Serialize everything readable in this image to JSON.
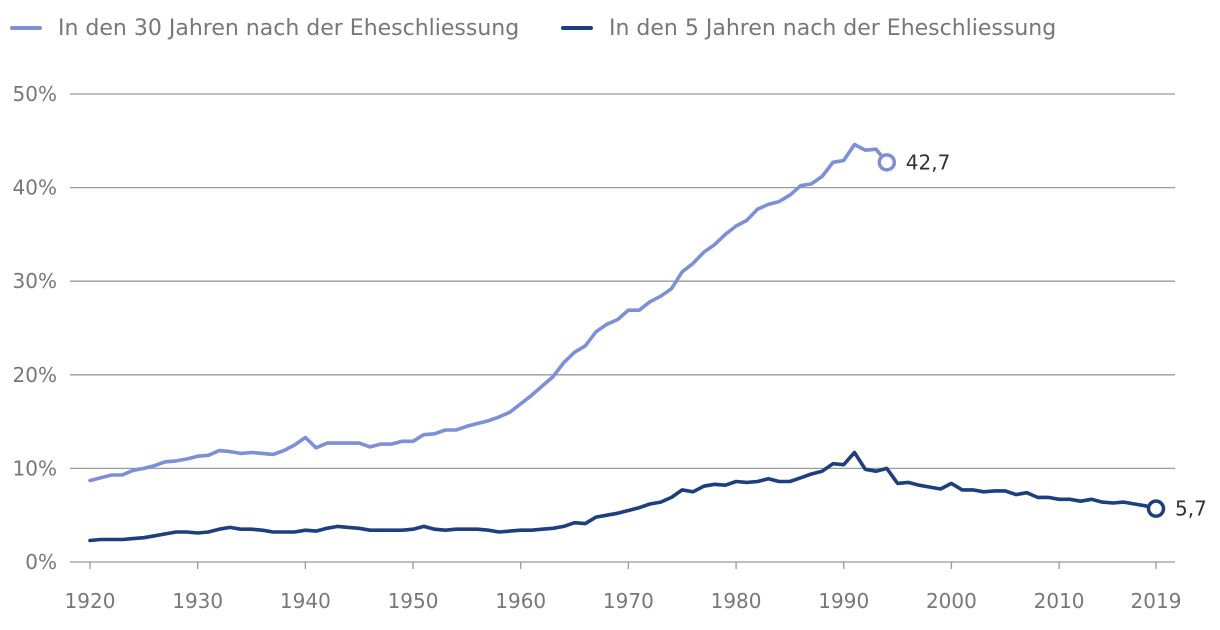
{
  "chart_data": {
    "type": "line",
    "title": "",
    "xlabel": "",
    "ylabel": "",
    "xlim": [
      1920,
      2019
    ],
    "ylim": [
      0,
      50
    ],
    "x_ticks": [
      "1920",
      "1930",
      "1940",
      "1950",
      "1960",
      "1970",
      "1980",
      "1990",
      "2000",
      "2010",
      "2019"
    ],
    "y_ticks": [
      "0%",
      "10%",
      "20%",
      "30%",
      "40%",
      "50%"
    ],
    "grid": true,
    "legend_position": "top-left",
    "series": [
      {
        "name": "In den 30 Jahren nach der Eheschliessung",
        "color": "#7d8fd6",
        "end_label": "42,7",
        "x": [
          1920,
          1921,
          1922,
          1923,
          1924,
          1925,
          1926,
          1927,
          1928,
          1929,
          1930,
          1931,
          1932,
          1933,
          1934,
          1935,
          1936,
          1937,
          1938,
          1939,
          1940,
          1941,
          1942,
          1943,
          1944,
          1945,
          1946,
          1947,
          1948,
          1949,
          1950,
          1951,
          1952,
          1953,
          1954,
          1955,
          1956,
          1957,
          1958,
          1959,
          1960,
          1961,
          1962,
          1963,
          1964,
          1965,
          1966,
          1967,
          1968,
          1969,
          1970,
          1971,
          1972,
          1973,
          1974,
          1975,
          1976,
          1977,
          1978,
          1979,
          1980,
          1981,
          1982,
          1983,
          1984,
          1985,
          1986,
          1987,
          1988,
          1989,
          1990,
          1991,
          1992,
          1993,
          1994
        ],
        "values": [
          8.7,
          9.0,
          9.3,
          9.3,
          9.8,
          10.0,
          10.3,
          10.7,
          10.8,
          11.0,
          11.3,
          11.4,
          11.9,
          11.8,
          11.6,
          11.7,
          11.6,
          11.5,
          11.9,
          12.5,
          13.3,
          12.2,
          12.7,
          12.7,
          12.7,
          12.7,
          12.3,
          12.6,
          12.6,
          12.9,
          12.9,
          13.6,
          13.7,
          14.1,
          14.1,
          14.5,
          14.8,
          15.1,
          15.5,
          16.0,
          16.9,
          17.8,
          18.8,
          19.8,
          21.3,
          22.4,
          23.1,
          24.6,
          25.4,
          25.9,
          26.9,
          26.9,
          27.8,
          28.4,
          29.2,
          31.0,
          31.9,
          33.1,
          33.9,
          35.0,
          35.9,
          36.5,
          37.7,
          38.2,
          38.5,
          39.2,
          40.2,
          40.4,
          41.2,
          42.7,
          42.9,
          44.6,
          44.0,
          44.1,
          42.7
        ]
      },
      {
        "name": "In den 5 Jahren nach der Eheschliessung",
        "color": "#1e3f7f",
        "end_label": "5,7",
        "x": [
          1920,
          1921,
          1922,
          1923,
          1924,
          1925,
          1926,
          1927,
          1928,
          1929,
          1930,
          1931,
          1932,
          1933,
          1934,
          1935,
          1936,
          1937,
          1938,
          1939,
          1940,
          1941,
          1942,
          1943,
          1944,
          1945,
          1946,
          1947,
          1948,
          1949,
          1950,
          1951,
          1952,
          1953,
          1954,
          1955,
          1956,
          1957,
          1958,
          1959,
          1960,
          1961,
          1962,
          1963,
          1964,
          1965,
          1966,
          1967,
          1968,
          1969,
          1970,
          1971,
          1972,
          1973,
          1974,
          1975,
          1976,
          1977,
          1978,
          1979,
          1980,
          1981,
          1982,
          1983,
          1984,
          1985,
          1986,
          1987,
          1988,
          1989,
          1990,
          1991,
          1992,
          1993,
          1994,
          1995,
          1996,
          1997,
          1998,
          1999,
          2000,
          2001,
          2002,
          2003,
          2004,
          2005,
          2006,
          2007,
          2008,
          2009,
          2010,
          2011,
          2012,
          2013,
          2014,
          2015,
          2016,
          2017,
          2018,
          2019
        ],
        "values": [
          2.3,
          2.4,
          2.4,
          2.4,
          2.5,
          2.6,
          2.8,
          3.0,
          3.2,
          3.2,
          3.1,
          3.2,
          3.5,
          3.7,
          3.5,
          3.5,
          3.4,
          3.2,
          3.2,
          3.2,
          3.4,
          3.3,
          3.6,
          3.8,
          3.7,
          3.6,
          3.4,
          3.4,
          3.4,
          3.4,
          3.5,
          3.8,
          3.5,
          3.4,
          3.5,
          3.5,
          3.5,
          3.4,
          3.2,
          3.3,
          3.4,
          3.4,
          3.5,
          3.6,
          3.8,
          4.2,
          4.1,
          4.8,
          5.0,
          5.2,
          5.5,
          5.8,
          6.2,
          6.4,
          6.9,
          7.7,
          7.5,
          8.1,
          8.3,
          8.2,
          8.6,
          8.5,
          8.6,
          8.9,
          8.6,
          8.6,
          9.0,
          9.4,
          9.7,
          10.5,
          10.4,
          11.7,
          9.9,
          9.7,
          10.0,
          8.4,
          8.5,
          8.2,
          8.0,
          7.8,
          8.4,
          7.7,
          7.7,
          7.5,
          7.6,
          7.6,
          7.2,
          7.4,
          6.9,
          6.9,
          6.7,
          6.7,
          6.5,
          6.7,
          6.4,
          6.3,
          6.4,
          6.2,
          6.0,
          5.7
        ]
      }
    ]
  }
}
